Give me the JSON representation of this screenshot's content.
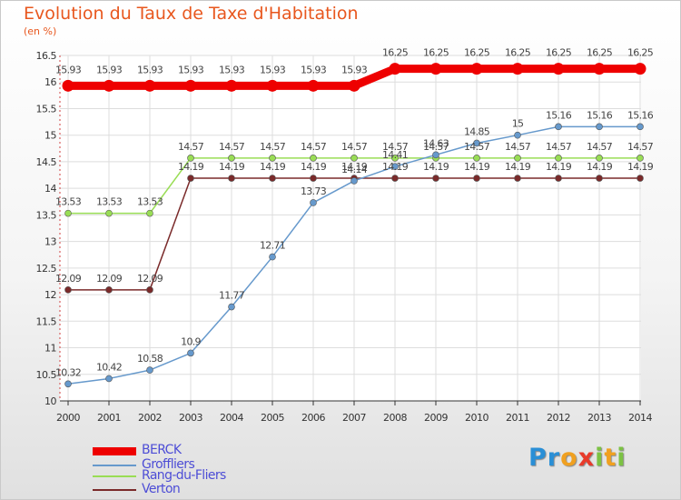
{
  "title": "Evolution du Taux de Taxe d'Habitation",
  "subtitle": "(en %)",
  "logo": {
    "letters": [
      {
        "ch": "P",
        "color": "#2a8fd6"
      },
      {
        "ch": "r",
        "color": "#2a8fd6"
      },
      {
        "ch": "o",
        "color": "#f0a020"
      },
      {
        "ch": "x",
        "color": "#e83a2a"
      },
      {
        "ch": "i",
        "color": "#7cc243"
      },
      {
        "ch": "t",
        "color": "#f0a020"
      },
      {
        "ch": "i",
        "color": "#7cc243"
      }
    ]
  },
  "chart_data": {
    "type": "line",
    "x": [
      "2000",
      "2001",
      "2002",
      "2003",
      "2004",
      "2005",
      "2006",
      "2007",
      "2008",
      "2009",
      "2010",
      "2011",
      "2012",
      "2013",
      "2014"
    ],
    "ylim": [
      10,
      16.5
    ],
    "yticks": [
      "10",
      "10.5",
      "11",
      "11.5",
      "12",
      "12.5",
      "13",
      "13.5",
      "14",
      "14.5",
      "15",
      "15.5",
      "16",
      "16.5"
    ],
    "grid": true,
    "legend_position": "bottom-left",
    "series": [
      {
        "name": "BERCK",
        "color": "#ee0000",
        "highlight": true,
        "values": [
          15.93,
          15.93,
          15.93,
          15.93,
          15.93,
          15.93,
          15.93,
          15.93,
          16.25,
          16.25,
          16.25,
          16.25,
          16.25,
          16.25,
          16.25
        ],
        "labels": [
          "15.93",
          "15.93",
          "15.93",
          "15.93",
          "15.93",
          "15.93",
          "15.93",
          "15.93",
          "16.25",
          "16.25",
          "16.25",
          "16.25",
          "16.25",
          "16.25",
          "16.25"
        ]
      },
      {
        "name": "Groffliers",
        "color": "#6699cc",
        "highlight": false,
        "values": [
          10.32,
          10.42,
          10.58,
          10.9,
          11.77,
          12.71,
          13.73,
          14.14,
          14.41,
          14.63,
          14.85,
          15,
          15.16,
          15.16,
          15.16
        ],
        "labels": [
          "10.32",
          "10.42",
          "10.58",
          "10.9",
          "11.77",
          "12.71",
          "13.73",
          "14.14",
          "14.41",
          "14.63",
          "14.85",
          "15",
          "15.16",
          "15.16",
          "15.16"
        ]
      },
      {
        "name": "Rang-du-Fliers",
        "color": "#99dd55",
        "highlight": false,
        "values": [
          13.53,
          13.53,
          13.53,
          14.57,
          14.57,
          14.57,
          14.57,
          14.57,
          14.57,
          14.57,
          14.57,
          14.57,
          14.57,
          14.57,
          14.57
        ],
        "labels": [
          "13.53",
          "13.53",
          "13.53",
          "14.57",
          "14.57",
          "14.57",
          "14.57",
          "14.57",
          "14.57",
          "14.57",
          "14.57",
          "14.57",
          "14.57",
          "14.57",
          "14.57"
        ]
      },
      {
        "name": "Verton",
        "color": "#7a2a2a",
        "highlight": false,
        "values": [
          12.09,
          12.09,
          12.09,
          14.19,
          14.19,
          14.19,
          14.19,
          14.19,
          14.19,
          14.19,
          14.19,
          14.19,
          14.19,
          14.19,
          14.19
        ],
        "labels": [
          "12.09",
          "12.09",
          "12.09",
          "14.19",
          "14.19",
          "14.19",
          "14.19",
          "14.19",
          "14.19",
          "14.19",
          "14.19",
          "14.19",
          "14.19",
          "14.19",
          "14.19"
        ]
      }
    ]
  }
}
